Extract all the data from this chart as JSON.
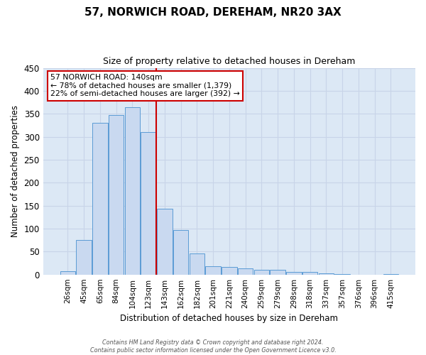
{
  "title": "57, NORWICH ROAD, DEREHAM, NR20 3AX",
  "subtitle": "Size of property relative to detached houses in Dereham",
  "xlabel": "Distribution of detached houses by size in Dereham",
  "ylabel": "Number of detached properties",
  "bin_labels": [
    "26sqm",
    "45sqm",
    "65sqm",
    "84sqm",
    "104sqm",
    "123sqm",
    "143sqm",
    "162sqm",
    "182sqm",
    "201sqm",
    "221sqm",
    "240sqm",
    "259sqm",
    "279sqm",
    "298sqm",
    "318sqm",
    "337sqm",
    "357sqm",
    "376sqm",
    "396sqm",
    "415sqm"
  ],
  "bar_values": [
    7,
    75,
    330,
    348,
    365,
    310,
    143,
    97,
    46,
    18,
    16,
    13,
    11,
    10,
    5,
    5,
    3,
    1,
    0,
    0,
    1
  ],
  "bar_color": "#c9d9f0",
  "bar_edge_color": "#5b9bd5",
  "vline_color": "#cc0000",
  "annotation_text_line1": "57 NORWICH ROAD: 140sqm",
  "annotation_text_line2": "← 78% of detached houses are smaller (1,379)",
  "annotation_text_line3": "22% of semi-detached houses are larger (392) →",
  "annotation_box_color": "#cc0000",
  "ylim": [
    0,
    450
  ],
  "grid_color": "#c8d4e8",
  "bg_color": "#dce8f5",
  "fig_bg_color": "#ffffff",
  "footer_line1": "Contains HM Land Registry data © Crown copyright and database right 2024.",
  "footer_line2": "Contains public sector information licensed under the Open Government Licence v3.0."
}
